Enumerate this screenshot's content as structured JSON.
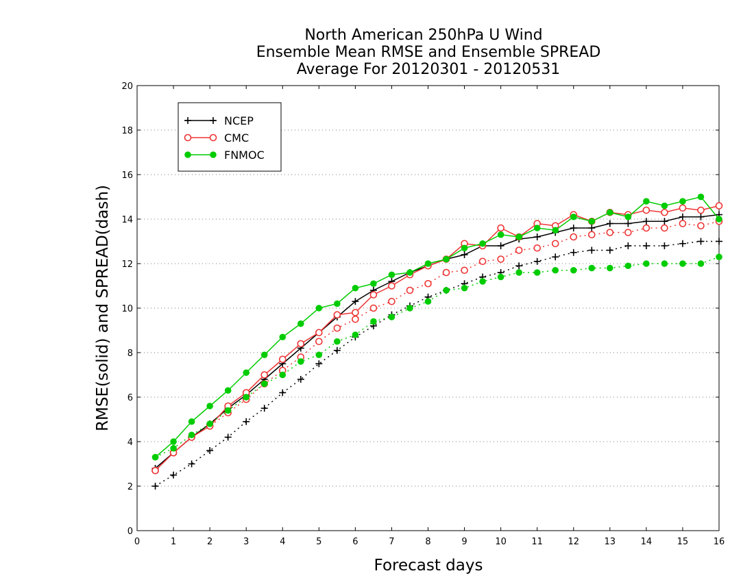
{
  "chart_data": {
    "type": "line",
    "title": [
      "North American 250hPa U Wind",
      "Ensemble Mean RMSE and Ensemble SPREAD",
      "Average For 20120301 - 20120531"
    ],
    "xlabel": "Forecast days",
    "ylabel": "RMSE(solid) and SPREAD(dash)",
    "xlim": [
      0,
      16
    ],
    "ylim": [
      0,
      20
    ],
    "xticks": [
      "0",
      "1",
      "2",
      "3",
      "4",
      "5",
      "6",
      "7",
      "8",
      "9",
      "10",
      "11",
      "12",
      "13",
      "14",
      "15",
      "16"
    ],
    "yticks": [
      "0",
      "2",
      "4",
      "6",
      "8",
      "10",
      "12",
      "14",
      "16",
      "18",
      "20"
    ],
    "grid": "horizontal dotted",
    "legend_position": "top-left",
    "x": [
      0.5,
      1,
      1.5,
      2,
      2.5,
      3,
      3.5,
      4,
      4.5,
      5,
      5.5,
      6,
      6.5,
      7,
      7.5,
      8,
      8.5,
      9,
      9.5,
      10,
      10.5,
      11,
      11.5,
      12,
      12.5,
      13,
      13.5,
      14,
      14.5,
      15,
      15.5,
      16
    ],
    "series": [
      {
        "name": "NCEP",
        "color": "#000000",
        "marker": "plus",
        "rmse": [
          2.8,
          3.5,
          4.2,
          4.8,
          5.5,
          6.1,
          6.8,
          7.5,
          8.2,
          8.9,
          9.6,
          10.3,
          10.8,
          11.2,
          11.6,
          11.9,
          12.2,
          12.4,
          12.8,
          12.8,
          13.1,
          13.2,
          13.4,
          13.6,
          13.6,
          13.8,
          13.8,
          13.9,
          13.9,
          14.1,
          14.1,
          14.2
        ],
        "spread": [
          2.0,
          2.5,
          3.0,
          3.6,
          4.2,
          4.9,
          5.5,
          6.2,
          6.8,
          7.5,
          8.1,
          8.7,
          9.2,
          9.7,
          10.1,
          10.5,
          10.8,
          11.1,
          11.4,
          11.6,
          11.9,
          12.1,
          12.3,
          12.5,
          12.6,
          12.6,
          12.8,
          12.8,
          12.8,
          12.9,
          13.0,
          13.0
        ]
      },
      {
        "name": "CMC",
        "color": "#ee3333",
        "marker": "open-circle",
        "rmse": [
          2.7,
          3.5,
          4.2,
          4.7,
          5.6,
          6.2,
          7.0,
          7.7,
          8.4,
          8.9,
          9.7,
          9.8,
          10.6,
          11.0,
          11.5,
          11.9,
          12.2,
          12.9,
          12.8,
          13.6,
          13.2,
          13.8,
          13.7,
          14.2,
          13.9,
          14.3,
          14.2,
          14.4,
          14.3,
          14.5,
          14.4,
          14.6
        ],
        "spread": [
          2.7,
          3.5,
          4.2,
          4.7,
          5.3,
          5.9,
          6.6,
          7.2,
          7.8,
          8.5,
          9.1,
          9.5,
          10.0,
          10.3,
          10.8,
          11.1,
          11.6,
          11.7,
          12.1,
          12.2,
          12.6,
          12.7,
          12.9,
          13.2,
          13.3,
          13.4,
          13.4,
          13.6,
          13.6,
          13.8,
          13.7,
          13.9
        ]
      },
      {
        "name": "FNMOC",
        "color": "#00cc00",
        "marker": "filled-circle",
        "rmse": [
          3.3,
          4.0,
          4.9,
          5.6,
          6.3,
          7.1,
          7.9,
          8.7,
          9.3,
          10.0,
          10.2,
          10.9,
          11.1,
          11.5,
          11.6,
          12.0,
          12.2,
          12.7,
          12.9,
          13.3,
          13.2,
          13.6,
          13.5,
          14.1,
          13.9,
          14.3,
          14.1,
          14.8,
          14.6,
          14.8,
          15.0,
          14.0
        ],
        "spread": [
          3.3,
          3.7,
          4.3,
          4.8,
          5.4,
          6.0,
          6.6,
          7.0,
          7.6,
          7.9,
          8.5,
          8.8,
          9.4,
          9.6,
          10.0,
          10.3,
          10.8,
          10.9,
          11.2,
          11.4,
          11.6,
          11.6,
          11.7,
          11.7,
          11.8,
          11.8,
          11.9,
          12.0,
          12.0,
          12.0,
          12.0,
          12.3
        ]
      }
    ]
  }
}
